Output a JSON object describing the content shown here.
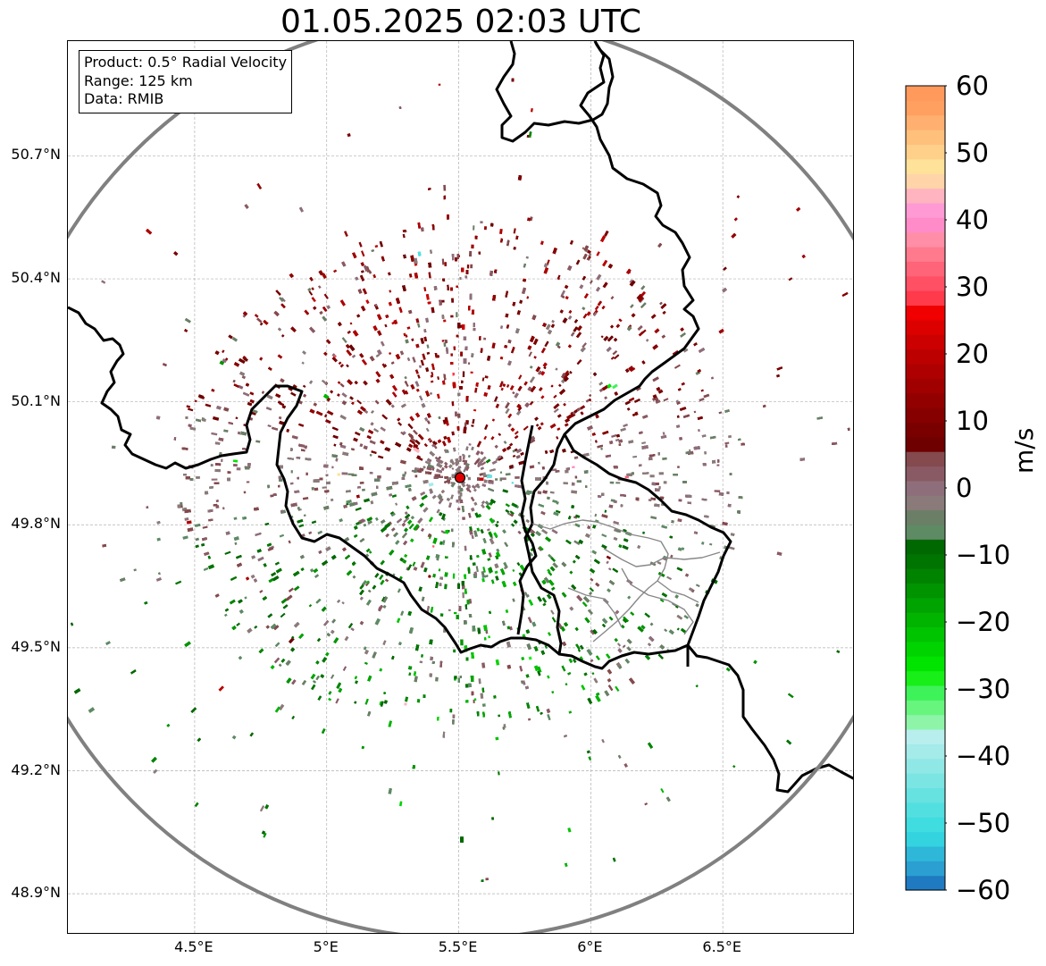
{
  "title": "01.05.2025 02:03 UTC",
  "info": {
    "product": "Product: 0.5° Radial Velocity",
    "range": "Range: 125 km",
    "data": "Data: RMIB"
  },
  "map": {
    "extent": {
      "lon": [
        4.02,
        7.0
      ],
      "lat": [
        48.8,
        50.98
      ]
    },
    "radar_site": {
      "lon": 5.505,
      "lat": 49.915,
      "color": "#e00000"
    },
    "range_km": 125,
    "range_ring_color": "#808080",
    "border_color": "#000000",
    "province_border_color": "#888888",
    "gridlines": true,
    "lat_ticks": [
      {
        "value": 50.7,
        "label": "50.7°N"
      },
      {
        "value": 50.4,
        "label": "50.4°N"
      },
      {
        "value": 50.1,
        "label": "50.1°N"
      },
      {
        "value": 49.8,
        "label": "49.8°N"
      },
      {
        "value": 49.5,
        "label": "49.5°N"
      },
      {
        "value": 49.2,
        "label": "49.2°N"
      },
      {
        "value": 48.9,
        "label": "48.9°N"
      }
    ],
    "lon_ticks": [
      {
        "value": 4.5,
        "label": "4.5°E"
      },
      {
        "value": 5.0,
        "label": "5°E"
      },
      {
        "value": 5.5,
        "label": "5.5°E"
      },
      {
        "value": 6.0,
        "label": "6°E"
      },
      {
        "value": 6.5,
        "label": "6.5°E"
      }
    ]
  },
  "colorbar": {
    "label": "m/s",
    "min": -60,
    "max": 60,
    "ticks": [
      {
        "value": 60,
        "label": "60"
      },
      {
        "value": 50,
        "label": "50"
      },
      {
        "value": 40,
        "label": "40"
      },
      {
        "value": 30,
        "label": "30"
      },
      {
        "value": 20,
        "label": "20"
      },
      {
        "value": 10,
        "label": "10"
      },
      {
        "value": 0,
        "label": "0"
      },
      {
        "value": -10,
        "label": "−10"
      },
      {
        "value": -20,
        "label": "−20"
      },
      {
        "value": -30,
        "label": "−30"
      },
      {
        "value": -40,
        "label": "−40"
      },
      {
        "value": -50,
        "label": "−50"
      },
      {
        "value": -60,
        "label": "−60"
      }
    ],
    "bins": [
      "#1f7ac1",
      "#2b9fd1",
      "#2eb7d8",
      "#33d3e0",
      "#3fdce0",
      "#52dfe0",
      "#66e2e1",
      "#7be5e3",
      "#90e8e6",
      "#a4ebea",
      "#b8efee",
      "#8ef5a8",
      "#67f57e",
      "#3ef25a",
      "#18ee18",
      "#00e400",
      "#00d400",
      "#00c400",
      "#00b400",
      "#00a400",
      "#009400",
      "#008400",
      "#007400",
      "#006800",
      "#5e8a64",
      "#6a7f66",
      "#8a7a7a",
      "#8e6e7a",
      "#8a5a64",
      "#844a4e",
      "#6e0000",
      "#7a0000",
      "#860000",
      "#920000",
      "#a00000",
      "#ae0000",
      "#bc0000",
      "#cc0000",
      "#dc0000",
      "#f00000",
      "#ff3a4a",
      "#ff5064",
      "#ff6478",
      "#ff7a8c",
      "#ff8ea6",
      "#ff8cc8",
      "#ff9ad4",
      "#ffb4c0",
      "#ffd4a8",
      "#ffe29a",
      "#ffd08a",
      "#ffc07c",
      "#ffb070",
      "#ffa060",
      "#ff9a5c"
    ]
  },
  "chart_data": {
    "type": "heatmap",
    "variable": "radial_velocity",
    "units": "m/s",
    "summary": [
      {
        "region": "north of radar (50.0–50.45°N, 5.3–6.3°E)",
        "value_range": [
          10,
          25
        ]
      },
      {
        "region": "near radar",
        "value_range": [
          -5,
          5
        ]
      },
      {
        "region": "south / southwest of radar (49.5–49.9°N, 4.9–6.0°E)",
        "value_range": [
          -25,
          -5
        ]
      }
    ]
  }
}
